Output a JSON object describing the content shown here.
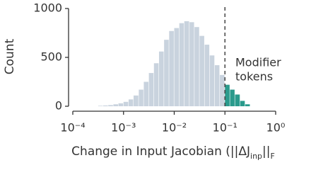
{
  "chart_data": {
    "type": "histogram",
    "ylabel": "Count",
    "xlabel_parts": [
      {
        "text": "Change in Input Jacobian (||ΔJ"
      },
      {
        "text": "inp",
        "sub": true
      },
      {
        "text": "||"
      },
      {
        "text": "F",
        "sub": true
      }
    ],
    "xscale": "log",
    "xlim": [
      0.0001,
      1
    ],
    "xticks": [
      {
        "value": 0.0001,
        "label": "10⁻⁴"
      },
      {
        "value": 0.001,
        "label": "10⁻³"
      },
      {
        "value": 0.01,
        "label": "10⁻²"
      },
      {
        "value": 0.1,
        "label": "10⁻¹"
      },
      {
        "value": 1,
        "label": "10⁰"
      }
    ],
    "ylim": [
      0,
      1000
    ],
    "yticks": [
      0,
      500,
      1000
    ],
    "vline": 0.1,
    "annotation": {
      "lines": [
        "Modifier",
        "tokens"
      ],
      "color": "#2a9a8c"
    },
    "series": [
      {
        "color": "#c9d3de",
        "bins": [
          0.000316,
          0.000398,
          0.000501,
          0.000631,
          0.000794,
          0.001,
          0.00126,
          0.00158,
          0.002,
          0.00251,
          0.00316,
          0.00398,
          0.00501,
          0.00631,
          0.00794,
          0.01,
          0.0126,
          0.0158,
          0.02,
          0.0251,
          0.0316,
          0.0398,
          0.0501,
          0.0631,
          0.0794,
          0.1
        ],
        "counts": [
          5,
          8,
          12,
          20,
          30,
          45,
          70,
          110,
          170,
          250,
          340,
          440,
          560,
          680,
          770,
          800,
          850,
          870,
          860,
          810,
          720,
          630,
          520,
          420,
          320
        ]
      },
      {
        "color": "#2a9a8c",
        "bins": [
          0.1,
          0.126,
          0.158,
          0.2,
          0.251,
          0.316
        ],
        "counts": [
          220,
          170,
          120,
          55,
          20
        ]
      }
    ]
  }
}
